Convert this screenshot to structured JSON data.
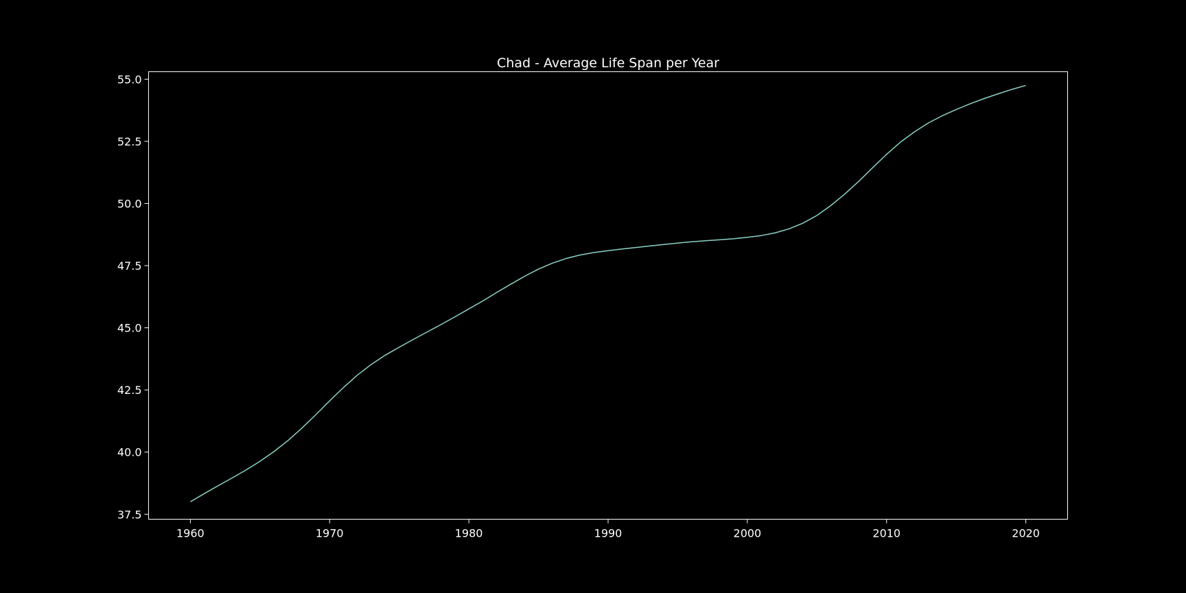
{
  "chart_data": {
    "type": "line",
    "title": "Chad - Average Life Span per Year",
    "xlabel": "",
    "ylabel": "",
    "xlim": [
      1957,
      2023
    ],
    "ylim": [
      37.3,
      55.3
    ],
    "x_ticks": [
      1960,
      1970,
      1980,
      1990,
      2000,
      2010,
      2020
    ],
    "x_tick_labels": [
      "1960",
      "1970",
      "1980",
      "1990",
      "2000",
      "2010",
      "2020"
    ],
    "y_ticks": [
      37.5,
      40.0,
      42.5,
      45.0,
      47.5,
      50.0,
      52.5,
      55.0
    ],
    "y_tick_labels": [
      "37.5",
      "40.0",
      "42.5",
      "45.0",
      "47.5",
      "50.0",
      "52.5",
      "55.0"
    ],
    "grid": false,
    "legend": "none",
    "background_color": "#000000",
    "axes_color": "#ffffff",
    "series": [
      {
        "color": "#8dd3c7",
        "x": [
          1960,
          1961,
          1962,
          1963,
          1964,
          1965,
          1966,
          1967,
          1968,
          1969,
          1970,
          1971,
          1972,
          1973,
          1974,
          1975,
          1976,
          1977,
          1978,
          1979,
          1980,
          1981,
          1982,
          1983,
          1984,
          1985,
          1986,
          1987,
          1988,
          1989,
          1990,
          1991,
          1992,
          1993,
          1994,
          1995,
          1996,
          1997,
          1998,
          1999,
          2000,
          2001,
          2002,
          2003,
          2004,
          2005,
          2006,
          2007,
          2008,
          2009,
          2010,
          2011,
          2012,
          2013,
          2014,
          2015,
          2016,
          2017,
          2018,
          2019,
          2020
        ],
        "values": [
          38.0,
          38.33,
          38.65,
          38.96,
          39.28,
          39.63,
          40.02,
          40.46,
          40.96,
          41.5,
          42.06,
          42.6,
          43.1,
          43.53,
          43.9,
          44.22,
          44.53,
          44.83,
          45.13,
          45.44,
          45.76,
          46.08,
          46.42,
          46.75,
          47.07,
          47.36,
          47.6,
          47.79,
          47.93,
          48.03,
          48.1,
          48.17,
          48.23,
          48.29,
          48.35,
          48.41,
          48.46,
          48.5,
          48.54,
          48.58,
          48.64,
          48.71,
          48.82,
          48.98,
          49.21,
          49.52,
          49.92,
          50.38,
          50.89,
          51.44,
          51.98,
          52.47,
          52.88,
          53.24,
          53.53,
          53.78,
          54.01,
          54.22,
          54.41,
          54.59,
          54.75
        ]
      }
    ]
  }
}
